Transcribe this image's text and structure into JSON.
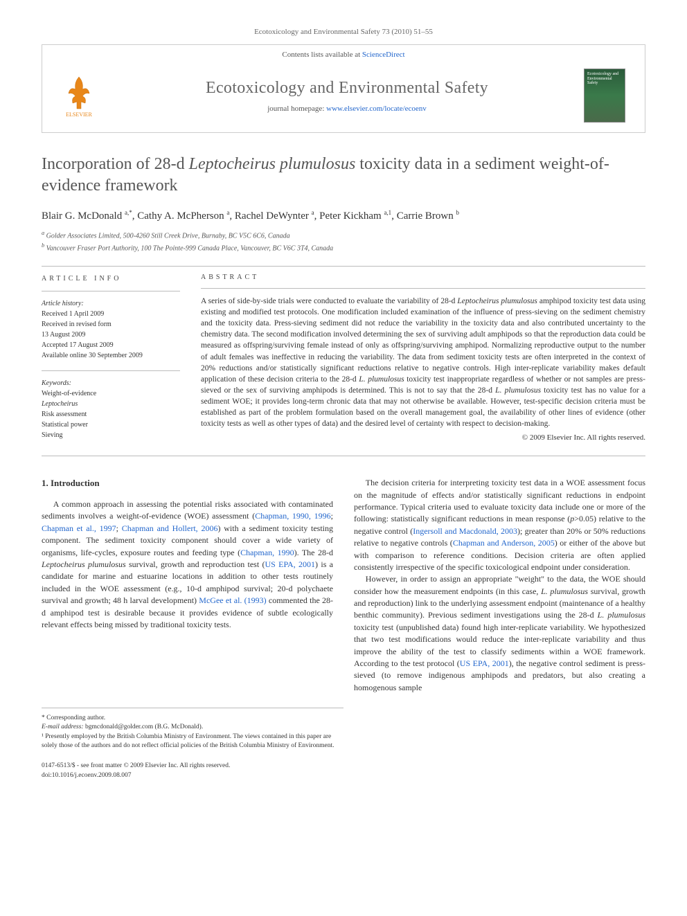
{
  "citation": "Ecotoxicology and Environmental Safety 73 (2010) 51–55",
  "header": {
    "contents_prefix": "Contents lists available at ",
    "contents_link": "ScienceDirect",
    "journal_title": "Ecotoxicology and Environmental Safety",
    "homepage_prefix": "journal homepage: ",
    "homepage_url": "www.elsevier.com/locate/ecoenv",
    "publisher": "ELSEVIER",
    "cover_text": "Ecotoxicology and Environmental Safety"
  },
  "title": {
    "pre": "Incorporation of 28-d ",
    "italic": "Leptocheirus plumulosus",
    "post": " toxicity data in a sediment weight-of-evidence framework"
  },
  "authors_html": "Blair G. McDonald <sup>a,*</sup>, Cathy A. McPherson <sup>a</sup>, Rachel DeWynter <sup>a</sup>, Peter Kickham <sup>a,1</sup>, Carrie Brown <sup>b</sup>",
  "affiliations": {
    "a": "Golder Associates Limited, 500-4260 Still Creek Drive, Burnaby, BC V5C 6C6, Canada",
    "b": "Vancouver Fraser Port Authority, 100 The Pointe-999 Canada Place, Vancouver, BC V6C 3T4, Canada"
  },
  "article_info": {
    "heading": "ARTICLE INFO",
    "history_label": "Article history:",
    "history": [
      "Received 1 April 2009",
      "Received in revised form",
      "13 August 2009",
      "Accepted 17 August 2009",
      "Available online 30 September 2009"
    ],
    "keywords_label": "Keywords:",
    "keywords": [
      "Weight-of-evidence",
      "Leptocheirus",
      "Risk assessment",
      "Statistical power",
      "Sieving"
    ]
  },
  "abstract": {
    "heading": "ABSTRACT",
    "body": "A series of side-by-side trials were conducted to evaluate the variability of 28-d <span class=\"italic\">Leptocheirus plumulosus</span> amphipod toxicity test data using existing and modified test protocols. One modification included examination of the influence of press-sieving on the sediment chemistry and the toxicity data. Press-sieving sediment did not reduce the variability in the toxicity data and also contributed uncertainty to the chemistry data. The second modification involved determining the sex of surviving adult amphipods so that the reproduction data could be measured as offspring/surviving female instead of only as offspring/surviving amphipod. Normalizing reproductive output to the number of adult females was ineffective in reducing the variability. The data from sediment toxicity tests are often interpreted in the context of 20% reductions and/or statistically significant reductions relative to negative controls. High inter-replicate variability makes default application of these decision criteria to the 28-d <span class=\"italic\">L. plumulosus</span> toxicity test inappropriate regardless of whether or not samples are press-sieved or the sex of surviving amphipods is determined. This is not to say that the 28-d <span class=\"italic\">L. plumulosus</span> toxicity test has no value for a sediment WOE; it provides long-term chronic data that may not otherwise be available. However, test-specific decision criteria must be established as part of the problem formulation based on the overall management goal, the availability of other lines of evidence (other toxicity tests as well as other types of data) and the desired level of certainty with respect to decision-making.",
    "copyright": "© 2009 Elsevier Inc. All rights reserved."
  },
  "section1": {
    "heading": "1. Introduction",
    "p1": "A common approach in assessing the potential risks associated with contaminated sediments involves a weight-of-evidence (WOE) assessment (<a>Chapman, 1990, 1996</a>; <a>Chapman et al., 1997</a>; <a>Chapman and Hollert, 2006</a>) with a sediment toxicity testing component. The sediment toxicity component should cover a wide variety of organisms, life-cycles, exposure routes and feeding type (<a>Chapman, 1990</a>). The 28-d <span class=\"italic\">Leptocheirus plumulosus</span> survival, growth and reproduction test (<a>US EPA, 2001</a>) is a candidate for marine and estuarine locations in addition to other tests routinely included in the WOE assessment (e.g., 10-d amphipod survival; 20-d polychaete survival and growth; 48 h larval development) <a>McGee et al. (1993)</a> commented the 28-d amphipod test is desirable because it provides evidence of subtle ecologically relevant effects being missed by traditional toxicity tests.",
    "p2": "The decision criteria for interpreting toxicity test data in a WOE assessment focus on the magnitude of effects and/or statistically significant reductions in endpoint performance. Typical criteria used to evaluate toxicity data include one or more of the following: statistically significant reductions in mean response (<span class=\"italic\">p</span>>0.05) relative to the negative control (<a>Ingersoll and Macdonald, 2003</a>); greater than 20% or 50% reductions relative to negative controls (<a>Chapman and Anderson, 2005</a>) or either of the above but with comparison to reference conditions. Decision criteria are often applied consistently irrespective of the specific toxicological endpoint under consideration.",
    "p3": "However, in order to assign an appropriate \"weight\" to the data, the WOE should consider how the measurement endpoints (in this case, <span class=\"italic\">L. plumulosus</span> survival, growth and reproduction) link to the underlying assessment endpoint (maintenance of a healthy benthic community). Previous sediment investigations using the 28-d <span class=\"italic\">L. plumulosus</span> toxicity test (unpublished data) found high inter-replicate variability. We hypothesized that two test modifications would reduce the inter-replicate variability and thus improve the ability of the test to classify sediments within a WOE framework. According to the test protocol (<a>US EPA, 2001</a>), the negative control sediment is press-sieved (to remove indigenous amphipods and predators, but also creating a homogenous sample"
  },
  "footnotes": {
    "corr": "* Corresponding author.",
    "email_label": "E-mail address: ",
    "email": "bgmcdonald@golder.com",
    "email_suffix": " (B.G. McDonald).",
    "note1": "¹ Presently employed by the British Columbia Ministry of Environment. The views contained in this paper are solely those of the authors and do not reflect official policies of the British Columbia Ministry of Environment."
  },
  "footer": {
    "issn": "0147-6513/$ - see front matter © 2009 Elsevier Inc. All rights reserved.",
    "doi": "doi:10.1016/j.ecoenv.2009.08.007"
  },
  "colors": {
    "link": "#2266cc",
    "text": "#333333",
    "muted": "#666666",
    "rule": "#bbbbbb"
  }
}
